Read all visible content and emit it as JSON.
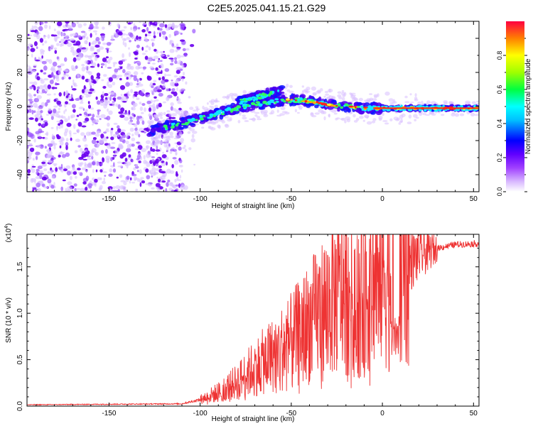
{
  "figure_title": "C2E5.2025.041.15.21.G29",
  "chart_data": [
    {
      "type": "heatmap",
      "title": "",
      "xlabel": "Height of straight line (km)",
      "ylabel": "Frequency (Hz)",
      "xlim": [
        -195,
        53
      ],
      "ylim": [
        -50,
        50
      ],
      "xticks": [
        -150,
        -100,
        -50,
        0,
        50
      ],
      "yticks": [
        -40,
        -20,
        0,
        20,
        40
      ],
      "colorbar": {
        "label": "Normalized spectral amplitude",
        "range": [
          0,
          1
        ],
        "ticks": [
          0.0,
          0.2,
          0.4,
          0.6,
          0.8
        ],
        "colors": [
          "#ffffff",
          "#c8a0ff",
          "#8000ff",
          "#0000ff",
          "#00ffff",
          "#00ff00",
          "#ffff00",
          "#ff8000",
          "#ff0000"
        ]
      },
      "ridge": {
        "noise_region": [
          -195,
          -108
        ],
        "signal_start": -128,
        "points": [
          [
            -128,
            -14
          ],
          [
            -110,
            -10
          ],
          [
            -100,
            -7
          ],
          [
            -90,
            -4
          ],
          [
            -80,
            -1
          ],
          [
            -70,
            1
          ],
          [
            -60,
            3
          ],
          [
            -50,
            4
          ],
          [
            -40,
            3
          ],
          [
            -30,
            1
          ],
          [
            -20,
            0
          ],
          [
            -10,
            -1
          ],
          [
            0,
            -1
          ],
          [
            10,
            -1
          ],
          [
            20,
            -1
          ],
          [
            30,
            -1
          ],
          [
            40,
            -1
          ],
          [
            53,
            -1
          ]
        ],
        "upper_branch": [
          [
            -80,
            2
          ],
          [
            -70,
            5
          ],
          [
            -60,
            8
          ],
          [
            -55,
            9
          ]
        ]
      }
    },
    {
      "type": "line",
      "title": "",
      "xlabel": "Height of straight line (km)",
      "ylabel": "SNR (10 * v/v)",
      "y_multiplier": "(x10",
      "y_multiplier_exp": "4",
      "xlim": [
        -195,
        53
      ],
      "ylim": [
        0,
        18500
      ],
      "xticks": [
        -150,
        -100,
        -50,
        0,
        50
      ],
      "yticks": [
        0.0,
        0.5,
        1.0,
        1.5
      ],
      "color": "#ee3333",
      "envelope": [
        [
          -195,
          150
        ],
        [
          -110,
          250
        ],
        [
          -100,
          700
        ],
        [
          -90,
          1500
        ],
        [
          -80,
          2600
        ],
        [
          -70,
          4200
        ],
        [
          -60,
          5500
        ],
        [
          -50,
          7000
        ],
        [
          -40,
          9000
        ],
        [
          -30,
          11000
        ],
        [
          -20,
          13000
        ],
        [
          -12,
          11500
        ],
        [
          -5,
          13500
        ],
        [
          0,
          14200
        ],
        [
          10,
          15000
        ],
        [
          20,
          16200
        ],
        [
          30,
          17000
        ],
        [
          40,
          17400
        ],
        [
          53,
          17500
        ]
      ]
    }
  ]
}
